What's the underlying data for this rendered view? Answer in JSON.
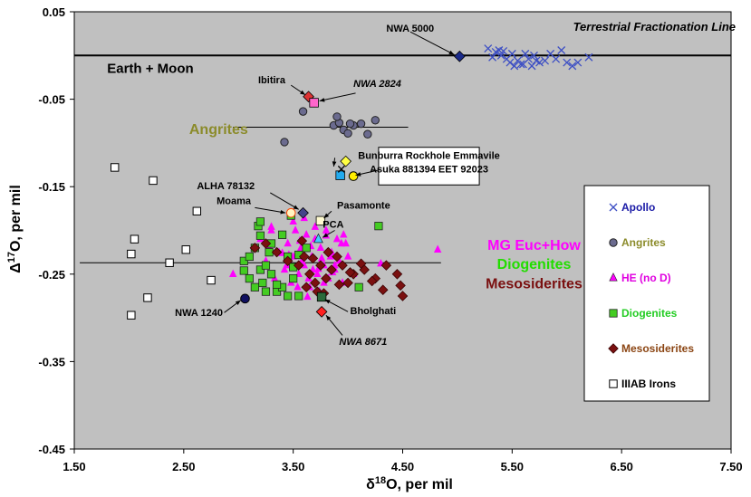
{
  "chart_data": {
    "type": "scatter",
    "xlabel_main": "δ",
    "xlabel_sup": "18",
    "xlabel_rest": "O, per mil",
    "ylabel_main": "Δ",
    "ylabel_sup": "17",
    "ylabel_rest": "O, per mil",
    "xlim": [
      1.5,
      7.5
    ],
    "ylim": [
      -0.45,
      0.05
    ],
    "x_ticks": [
      "1.50",
      "2.50",
      "3.50",
      "4.50",
      "5.50",
      "6.50",
      "7.50"
    ],
    "y_ticks": [
      "0.05",
      "-0.05",
      "-0.15",
      "-0.25",
      "-0.35",
      "-0.45"
    ],
    "plot_bg": "#c0c0c0",
    "grid": false,
    "legend_position": "right",
    "terrestrial_line": {
      "y": 0.0,
      "label": "Terrestrial Fractionation Line"
    },
    "reference_lines": [
      {
        "x": [
          2.95,
          4.55
        ],
        "y": -0.082
      },
      {
        "x": [
          1.55,
          4.85
        ],
        "y": -0.237
      }
    ],
    "region_labels": [
      {
        "text": "Earth + Moon",
        "x": 1.8,
        "y": -0.02,
        "color": "#000000"
      },
      {
        "text": "Angrites",
        "x": 2.55,
        "y": -0.09,
        "color": "#8b8b2a"
      },
      {
        "text": "MG Euc+How",
        "x": 5.1,
        "y": -0.222,
        "color": "#ff00ff"
      },
      {
        "text": "Diogenites",
        "x": 5.1,
        "y": -0.244,
        "color": "#22dd00"
      },
      {
        "text": "Mesosiderites",
        "x": 5.1,
        "y": -0.266,
        "color": "#7a1010"
      }
    ],
    "series": [
      {
        "name": "Apollo",
        "marker": "x",
        "color": "#3d4fc4",
        "x": [
          5.28,
          5.35,
          5.4,
          5.45,
          5.5,
          5.55,
          5.6,
          5.65,
          5.7,
          5.75,
          5.8,
          5.85,
          5.9,
          5.95,
          6.0,
          6.05,
          6.1,
          6.2,
          5.32,
          5.42,
          5.52,
          5.62,
          5.72,
          5.48,
          5.58,
          5.68,
          5.38
        ],
        "y": [
          0.008,
          0.004,
          0.0,
          -0.004,
          0.002,
          -0.006,
          -0.01,
          -0.004,
          0.0,
          -0.008,
          -0.006,
          0.002,
          -0.004,
          0.006,
          -0.008,
          -0.012,
          -0.008,
          -0.002,
          -0.002,
          0.005,
          -0.012,
          0.002,
          -0.006,
          -0.008,
          -0.01,
          -0.012,
          0.006
        ]
      },
      {
        "name": "Angrites",
        "marker": "circle",
        "color": "#6b6b8f",
        "x": [
          3.59,
          3.42,
          3.87,
          3.92,
          3.96,
          4.0,
          4.05,
          4.12,
          4.18,
          4.25,
          3.9,
          4.02
        ],
        "y": [
          -0.064,
          -0.099,
          -0.08,
          -0.077,
          -0.085,
          -0.089,
          -0.08,
          -0.078,
          -0.09,
          -0.074,
          -0.07,
          -0.078
        ]
      },
      {
        "name": "HE (no D)",
        "marker": "triangle",
        "color": "#ff00ff",
        "x": [
          3.2,
          3.25,
          3.3,
          3.33,
          3.37,
          3.4,
          3.42,
          3.45,
          3.48,
          3.5,
          3.52,
          3.55,
          3.57,
          3.6,
          3.62,
          3.65,
          3.67,
          3.7,
          3.72,
          3.75,
          3.78,
          3.8,
          3.82,
          3.85,
          3.88,
          3.9,
          3.92,
          3.95,
          3.98,
          4.0,
          4.05,
          3.36,
          3.44,
          3.54,
          3.64,
          3.74,
          3.84,
          3.94,
          3.28,
          3.58,
          3.68,
          3.78,
          3.88,
          3.46,
          3.56,
          3.66,
          3.76,
          3.86,
          3.96,
          4.3,
          4.82,
          2.95,
          3.3,
          3.5,
          3.6,
          3.7,
          3.8,
          3.4,
          3.63,
          3.73
        ],
        "y": [
          -0.21,
          -0.235,
          -0.2,
          -0.255,
          -0.225,
          -0.205,
          -0.245,
          -0.215,
          -0.26,
          -0.23,
          -0.2,
          -0.25,
          -0.22,
          -0.24,
          -0.205,
          -0.265,
          -0.23,
          -0.21,
          -0.25,
          -0.22,
          -0.24,
          -0.2,
          -0.255,
          -0.225,
          -0.245,
          -0.21,
          -0.235,
          -0.26,
          -0.215,
          -0.23,
          -0.25,
          -0.27,
          -0.24,
          -0.265,
          -0.255,
          -0.27,
          -0.23,
          -0.215,
          -0.22,
          -0.235,
          -0.245,
          -0.26,
          -0.24,
          -0.228,
          -0.212,
          -0.218,
          -0.232,
          -0.248,
          -0.205,
          -0.238,
          -0.222,
          -0.25,
          -0.196,
          -0.19,
          -0.186,
          -0.196,
          -0.206,
          -0.226,
          -0.276,
          -0.244
        ]
      },
      {
        "name": "Diogenites",
        "marker": "square",
        "color": "#44cc22",
        "x": [
          3.05,
          3.1,
          3.15,
          3.18,
          3.2,
          3.22,
          3.25,
          3.28,
          3.3,
          3.35,
          3.4,
          3.45,
          3.5,
          3.55,
          3.1,
          3.2,
          3.3,
          3.45,
          4.1,
          4.28,
          3.62,
          3.15,
          3.25,
          3.4,
          3.55,
          3.5,
          3.35,
          3.2,
          3.05,
          3.48
        ],
        "y": [
          -0.235,
          -0.23,
          -0.22,
          -0.195,
          -0.245,
          -0.26,
          -0.24,
          -0.225,
          -0.25,
          -0.27,
          -0.265,
          -0.23,
          -0.255,
          -0.275,
          -0.255,
          -0.19,
          -0.215,
          -0.275,
          -0.265,
          -0.195,
          -0.22,
          -0.265,
          -0.27,
          -0.205,
          -0.228,
          -0.242,
          -0.262,
          -0.206,
          -0.246,
          -0.183
        ]
      },
      {
        "name": "Mesosiderites",
        "marker": "diamond",
        "color": "#7a1010",
        "x": [
          3.15,
          3.25,
          3.35,
          3.45,
          3.55,
          3.6,
          3.65,
          3.7,
          3.75,
          3.8,
          3.85,
          3.9,
          3.95,
          4.0,
          4.05,
          4.15,
          4.25,
          4.35,
          4.45,
          4.5,
          3.62,
          3.72,
          3.82,
          3.92,
          4.02,
          4.12,
          4.22,
          4.32,
          3.68,
          3.78,
          4.48,
          3.58
        ],
        "y": [
          -0.22,
          -0.215,
          -0.225,
          -0.235,
          -0.24,
          -0.23,
          -0.25,
          -0.26,
          -0.24,
          -0.255,
          -0.245,
          -0.23,
          -0.24,
          -0.26,
          -0.25,
          -0.245,
          -0.255,
          -0.24,
          -0.25,
          -0.275,
          -0.265,
          -0.27,
          -0.225,
          -0.262,
          -0.248,
          -0.238,
          -0.258,
          -0.268,
          -0.232,
          -0.272,
          -0.263,
          -0.212
        ]
      },
      {
        "name": "IIIAB Irons",
        "marker": "open-square",
        "color": "#555555",
        "x": [
          1.87,
          2.22,
          2.62,
          2.05,
          2.02,
          2.37,
          2.52,
          2.75,
          2.17,
          2.02
        ],
        "y": [
          -0.128,
          -0.143,
          -0.178,
          -0.21,
          -0.227,
          -0.237,
          -0.222,
          -0.257,
          -0.277,
          -0.297
        ],
        "legend_label": "IIIAB Irons"
      }
    ],
    "legend_entries": [
      {
        "label": "Apollo",
        "marker": "x",
        "color": "#1a1aa6"
      },
      {
        "label": "Angrites",
        "marker": "circle",
        "color": "#8b8b2a"
      },
      {
        "label": "HE (no D)",
        "marker": "triangle",
        "color": "#e000e0"
      },
      {
        "label": "Diogenites",
        "marker": "square",
        "color": "#22cc22"
      },
      {
        "label": "Mesosiderites",
        "marker": "diamond",
        "color": "#8b4513"
      },
      {
        "label": "IIIAB Irons",
        "marker": "open-square",
        "color": "#000000"
      }
    ],
    "named_points": [
      {
        "label": "NWA 5000",
        "x": 5.02,
        "y": -0.001,
        "marker": "diamond",
        "fill": "#1a2a8a"
      },
      {
        "label": "Ibitira",
        "x": 3.64,
        "y": -0.047,
        "marker": "diamond",
        "fill": "#dd3333"
      },
      {
        "label": "NWA 2824",
        "x": 3.69,
        "y": -0.054,
        "marker": "square",
        "fill": "#ff66cc"
      },
      {
        "label": "ALHA 78132",
        "x": 3.59,
        "y": -0.18,
        "marker": "diamond",
        "fill": "#44448a"
      },
      {
        "label": "Moama",
        "x": 3.48,
        "y": -0.18,
        "marker": "circle",
        "fill": "#fff4c0",
        "stroke": "#ff4400"
      },
      {
        "label": "Pasamonte",
        "x": 3.75,
        "y": -0.189,
        "marker": "square",
        "fill": "#fffbd0"
      },
      {
        "label": "PCA",
        "x": 3.73,
        "y": -0.21,
        "marker": "triangle",
        "fill": "#44ccff"
      },
      {
        "label": "Bunburra Rockhole",
        "x": 3.98,
        "y": -0.121,
        "marker": "diamond",
        "fill": "#ffff44"
      },
      {
        "label": "Emmavile",
        "x": 4.05,
        "y": -0.138,
        "marker": "circle",
        "fill": "#ffee00"
      },
      {
        "label": "Asuka 881394",
        "x": 3.93,
        "y": -0.137,
        "marker": "square",
        "fill": "#22aaee"
      },
      {
        "label": "EET 92023",
        "x": 3.94,
        "y": -0.13,
        "marker": "x",
        "fill": "#000000"
      },
      {
        "label": "NWA 1240",
        "x": 3.06,
        "y": -0.278,
        "marker": "circle",
        "fill": "#101060"
      },
      {
        "label": "Bholghati",
        "x": 3.76,
        "y": -0.276,
        "marker": "square",
        "fill": "#2a6a3a"
      },
      {
        "label": "NWA 8671",
        "x": 3.76,
        "y": -0.293,
        "marker": "diamond",
        "fill": "#ff2222"
      }
    ],
    "annotations": [
      {
        "text": "NWA 5000",
        "x": 4.35,
        "y": 0.027,
        "color": "#000000",
        "italic": false,
        "size": 11
      },
      {
        "text": "Ibitira",
        "x": 3.18,
        "y": -0.032,
        "color": "#000000",
        "italic": false,
        "size": 11
      },
      {
        "text": "NWA 2824",
        "x": 4.05,
        "y": -0.036,
        "color": "#e01010",
        "italic": true,
        "size": 12
      },
      {
        "text": "Bunburra Rockhole  Emmavile",
        "x": 4.3,
        "y": -0.118,
        "color": "#000000",
        "italic": false,
        "size": 11
      },
      {
        "text": "Asuka 881394   EET 92023",
        "x": 4.3,
        "y": -0.134,
        "color": "#000000",
        "italic": false,
        "size": 11
      },
      {
        "text": "ALHA 78132",
        "x": 2.62,
        "y": -0.153,
        "color": "#000000",
        "italic": false,
        "size": 11
      },
      {
        "text": "Moama",
        "x": 2.8,
        "y": -0.17,
        "color": "#000000",
        "italic": false,
        "size": 11
      },
      {
        "text": "Pasamonte",
        "x": 3.9,
        "y": -0.175,
        "color": "#000000",
        "italic": false,
        "size": 11
      },
      {
        "text": "PCA",
        "x": 3.77,
        "y": -0.197,
        "color": "#000000",
        "italic": false,
        "size": 11
      },
      {
        "text": "NWA 1240",
        "x": 2.42,
        "y": -0.298,
        "color": "#000000",
        "italic": false,
        "size": 11
      },
      {
        "text": "Bholghati",
        "x": 4.02,
        "y": -0.296,
        "color": "#000000",
        "italic": false,
        "size": 11
      },
      {
        "text": "NWA 8671",
        "x": 3.92,
        "y": -0.331,
        "color": "#e01010",
        "italic": true,
        "size": 12
      }
    ],
    "arrows": [
      {
        "from": [
          4.57,
          0.027
        ],
        "to": [
          4.97,
          0.001
        ]
      },
      {
        "from": [
          3.48,
          -0.034
        ],
        "to": [
          3.61,
          -0.045
        ]
      },
      {
        "from": [
          4.07,
          -0.043
        ],
        "to": [
          3.74,
          -0.052
        ]
      },
      {
        "from": [
          3.88,
          -0.117
        ],
        "to": [
          3.87,
          -0.127
        ]
      },
      {
        "from": [
          4.28,
          -0.131
        ],
        "to": [
          4.07,
          -0.137
        ]
      },
      {
        "from": [
          3.29,
          -0.157
        ],
        "to": [
          3.55,
          -0.176
        ]
      },
      {
        "from": [
          3.15,
          -0.174
        ],
        "to": [
          3.43,
          -0.18
        ]
      },
      {
        "from": [
          3.85,
          -0.178
        ],
        "to": [
          3.78,
          -0.186
        ]
      },
      {
        "from": [
          3.88,
          -0.2
        ],
        "to": [
          3.77,
          -0.208
        ]
      },
      {
        "from": [
          2.87,
          -0.294
        ],
        "to": [
          3.02,
          -0.28
        ]
      },
      {
        "from": [
          4.0,
          -0.293
        ],
        "to": [
          3.79,
          -0.279
        ]
      },
      {
        "from": [
          3.95,
          -0.32
        ],
        "to": [
          3.8,
          -0.297
        ]
      }
    ]
  }
}
